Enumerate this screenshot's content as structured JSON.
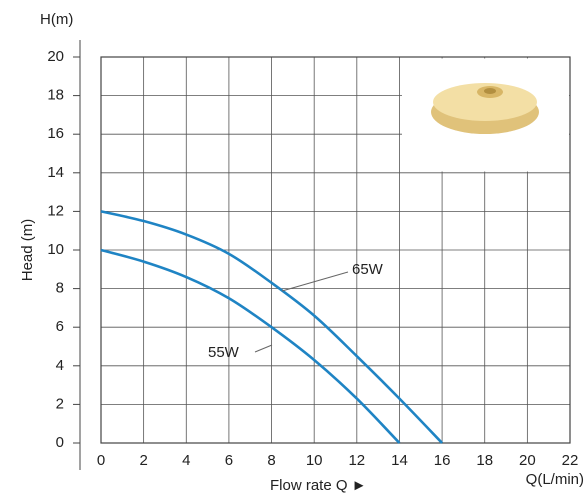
{
  "chart_data": {
    "type": "line",
    "y_axis_title": "H(m)",
    "y_axis_label": "Head (m)",
    "x_axis_label": "Flow rate Q  ►",
    "x_axis_title": "Q(L/min)",
    "x": [
      0,
      2,
      4,
      6,
      8,
      10,
      12,
      14,
      16
    ],
    "series": [
      {
        "name": "65W",
        "color": "#1f84c4",
        "values": [
          12,
          11.5,
          10.8,
          9.8,
          8.3,
          6.6,
          4.5,
          2.3,
          0
        ]
      },
      {
        "name": "55W",
        "color": "#1f84c4",
        "values": [
          10,
          9.4,
          8.6,
          7.5,
          6.0,
          4.3,
          2.3,
          0,
          null
        ]
      }
    ],
    "xlim": [
      0,
      22
    ],
    "xticks": [
      0,
      2,
      4,
      6,
      8,
      10,
      12,
      14,
      16,
      18,
      20,
      22
    ],
    "ylim": [
      0,
      20
    ],
    "yticks": [
      0,
      2,
      4,
      6,
      8,
      10,
      12,
      14,
      16,
      18,
      20
    ],
    "grid": true
  }
}
